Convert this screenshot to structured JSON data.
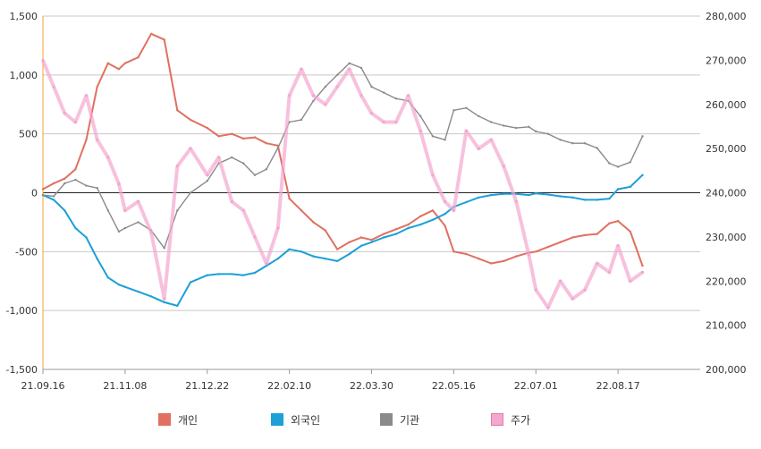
{
  "chart_data": {
    "type": "line",
    "title": "",
    "x_tick_labels": [
      "21.09.16",
      "21.11.08",
      "21.12.22",
      "22.02.10",
      "22.03.30",
      "22.05.16",
      "22.07.01",
      "22.08.17"
    ],
    "y_left": {
      "ticks": [
        "1,500",
        "1,000",
        "500",
        "0",
        "-500",
        "-1,000",
        "-1,500"
      ],
      "ylim": [
        -1500,
        1500
      ]
    },
    "y_right": {
      "ticks": [
        "280,000",
        "270,000",
        "260,000",
        "250,000",
        "240,000",
        "230,000",
        "220,000",
        "210,000",
        "200,000"
      ],
      "ylim": [
        200000,
        280000
      ]
    },
    "grid": true,
    "legend_position": "bottom",
    "series": [
      {
        "name": "개인",
        "axis": "left",
        "color": "#e07060",
        "x": [
          "21.09.16",
          "21.09.23",
          "21.09.30",
          "21.10.07",
          "21.10.14",
          "21.10.21",
          "21.10.28",
          "21.11.04",
          "21.11.08",
          "21.11.15",
          "21.11.22",
          "21.11.29",
          "21.12.06",
          "21.12.13",
          "21.12.22",
          "21.12.29",
          "22.01.06",
          "22.01.13",
          "22.01.20",
          "22.01.27",
          "22.02.03",
          "22.02.10",
          "22.02.17",
          "22.02.24",
          "22.03.03",
          "22.03.10",
          "22.03.17",
          "22.03.24",
          "22.03.30",
          "22.04.06",
          "22.04.13",
          "22.04.20",
          "22.04.27",
          "22.05.04",
          "22.05.11",
          "22.05.16",
          "22.05.23",
          "22.05.30",
          "22.06.06",
          "22.06.13",
          "22.06.20",
          "22.06.27",
          "22.07.01",
          "22.07.08",
          "22.07.15",
          "22.07.22",
          "22.07.29",
          "22.08.05",
          "22.08.12",
          "22.08.17",
          "22.08.24",
          "22.08.31"
        ],
        "values": [
          30,
          80,
          120,
          200,
          450,
          900,
          1100,
          1050,
          1100,
          1150,
          1350,
          1300,
          700,
          620,
          550,
          480,
          500,
          460,
          470,
          420,
          400,
          -50,
          -150,
          -250,
          -320,
          -480,
          -420,
          -380,
          -400,
          -350,
          -310,
          -270,
          -200,
          -150,
          -280,
          -500,
          -520,
          -560,
          -600,
          -580,
          -540,
          -510,
          -500,
          -460,
          -420,
          -380,
          -360,
          -350,
          -260,
          -240,
          -330,
          -620
        ]
      },
      {
        "name": "외국인",
        "axis": "left",
        "color": "#1ba0d8",
        "x": [
          "21.09.16",
          "21.09.23",
          "21.09.30",
          "21.10.07",
          "21.10.14",
          "21.10.21",
          "21.10.28",
          "21.11.04",
          "21.11.08",
          "21.11.15",
          "21.11.22",
          "21.11.29",
          "21.12.06",
          "21.12.13",
          "21.12.22",
          "21.12.29",
          "22.01.06",
          "22.01.13",
          "22.01.20",
          "22.01.27",
          "22.02.03",
          "22.02.10",
          "22.02.17",
          "22.02.24",
          "22.03.03",
          "22.03.10",
          "22.03.17",
          "22.03.24",
          "22.03.30",
          "22.04.06",
          "22.04.13",
          "22.04.20",
          "22.04.27",
          "22.05.04",
          "22.05.11",
          "22.05.16",
          "22.05.23",
          "22.05.30",
          "22.06.06",
          "22.06.13",
          "22.06.20",
          "22.06.27",
          "22.07.01",
          "22.07.08",
          "22.07.15",
          "22.07.22",
          "22.07.29",
          "22.08.05",
          "22.08.12",
          "22.08.17",
          "22.08.24",
          "22.08.31"
        ],
        "values": [
          -20,
          -60,
          -150,
          -300,
          -380,
          -560,
          -720,
          -780,
          -800,
          -840,
          -880,
          -930,
          -960,
          -760,
          -700,
          -690,
          -690,
          -700,
          -680,
          -620,
          -560,
          -480,
          -500,
          -540,
          -560,
          -580,
          -520,
          -450,
          -420,
          -380,
          -350,
          -300,
          -270,
          -230,
          -180,
          -120,
          -80,
          -40,
          -20,
          -10,
          -10,
          -20,
          -5,
          -15,
          -30,
          -40,
          -60,
          -60,
          -50,
          30,
          50,
          150
        ]
      },
      {
        "name": "기관",
        "axis": "left",
        "color": "#8a8a8a",
        "x": [
          "21.09.16",
          "21.09.23",
          "21.09.30",
          "21.10.07",
          "21.10.14",
          "21.10.21",
          "21.10.28",
          "21.11.04",
          "21.11.08",
          "21.11.15",
          "21.11.22",
          "21.11.29",
          "21.12.06",
          "21.12.13",
          "21.12.22",
          "21.12.29",
          "22.01.06",
          "22.01.13",
          "22.01.20",
          "22.01.27",
          "22.02.03",
          "22.02.10",
          "22.02.17",
          "22.02.24",
          "22.03.03",
          "22.03.10",
          "22.03.17",
          "22.03.24",
          "22.03.30",
          "22.04.06",
          "22.04.13",
          "22.04.20",
          "22.04.27",
          "22.05.04",
          "22.05.11",
          "22.05.16",
          "22.05.23",
          "22.05.30",
          "22.06.06",
          "22.06.13",
          "22.06.20",
          "22.06.27",
          "22.07.01",
          "22.07.08",
          "22.07.15",
          "22.07.22",
          "22.07.29",
          "22.08.05",
          "22.08.12",
          "22.08.17",
          "22.08.24",
          "22.08.31"
        ],
        "values": [
          -20,
          -30,
          80,
          110,
          60,
          40,
          -150,
          -330,
          -300,
          -250,
          -320,
          -470,
          -150,
          0,
          100,
          250,
          300,
          250,
          150,
          200,
          380,
          600,
          620,
          780,
          900,
          1000,
          1100,
          1060,
          900,
          850,
          800,
          780,
          650,
          480,
          450,
          700,
          720,
          650,
          600,
          570,
          550,
          560,
          520,
          500,
          450,
          420,
          420,
          380,
          250,
          220,
          260,
          480
        ]
      },
      {
        "name": "주가",
        "axis": "right",
        "color": "#f4a7cf",
        "x": [
          "21.09.16",
          "21.09.23",
          "21.09.30",
          "21.10.07",
          "21.10.14",
          "21.10.21",
          "21.10.28",
          "21.11.04",
          "21.11.08",
          "21.11.15",
          "21.11.22",
          "21.11.29",
          "21.12.06",
          "21.12.13",
          "21.12.22",
          "21.12.29",
          "22.01.06",
          "22.01.13",
          "22.01.20",
          "22.01.27",
          "22.02.03",
          "22.02.10",
          "22.02.17",
          "22.02.24",
          "22.03.03",
          "22.03.10",
          "22.03.17",
          "22.03.24",
          "22.03.30",
          "22.04.06",
          "22.04.13",
          "22.04.20",
          "22.04.27",
          "22.05.04",
          "22.05.11",
          "22.05.16",
          "22.05.23",
          "22.05.30",
          "22.06.06",
          "22.06.13",
          "22.06.20",
          "22.06.27",
          "22.07.01",
          "22.07.08",
          "22.07.15",
          "22.07.22",
          "22.07.29",
          "22.08.05",
          "22.08.12",
          "22.08.17",
          "22.08.24",
          "22.08.31"
        ],
        "values": [
          270000,
          264000,
          258000,
          256000,
          262000,
          252000,
          248000,
          242000,
          236000,
          238000,
          231000,
          216000,
          246000,
          250000,
          244000,
          248000,
          238000,
          236000,
          230000,
          224000,
          232000,
          262000,
          268000,
          262000,
          260000,
          264000,
          268000,
          262000,
          258000,
          256000,
          256000,
          262000,
          254000,
          244000,
          238000,
          236000,
          254000,
          250000,
          252000,
          246000,
          238000,
          226000,
          218000,
          214000,
          220000,
          216000,
          218000,
          224000,
          222000,
          228000,
          220000,
          222000
        ]
      }
    ]
  },
  "legend": [
    {
      "label": "개인",
      "color": "#e07060"
    },
    {
      "label": "외국인",
      "color": "#1ba0d8"
    },
    {
      "label": "기관",
      "color": "#8a8a8a"
    },
    {
      "label": "주가",
      "color": "#f4a7cf"
    }
  ]
}
